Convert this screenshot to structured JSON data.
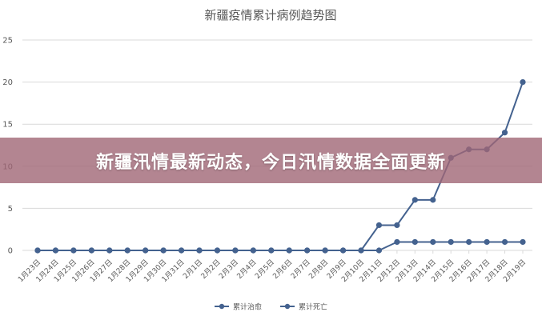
{
  "overlay": {
    "headline": "新疆汛情最新动态，今日汛情数据全面更新"
  },
  "chart_data": {
    "type": "line",
    "title": "新疆疫情累计病例趋势图",
    "categories": [
      "1月23日",
      "1月24日",
      "1月25日",
      "1月26日",
      "1月27日",
      "1月28日",
      "1月29日",
      "1月30日",
      "1月31日",
      "2月1日",
      "2月2日",
      "2月3日",
      "2月4日",
      "2月5日",
      "2月6日",
      "2月7日",
      "2月8日",
      "2月9日",
      "2月10日",
      "2月11日",
      "2月12日",
      "2月13日",
      "2月14日",
      "2月15日",
      "2月16日",
      "2月17日",
      "2月18日",
      "2月19日"
    ],
    "series": [
      {
        "name": "累计治愈",
        "values": [
          0,
          0,
          0,
          0,
          0,
          0,
          0,
          0,
          0,
          0,
          0,
          0,
          0,
          0,
          0,
          0,
          0,
          0,
          0,
          3,
          3,
          6,
          6,
          11,
          12,
          12,
          14,
          20
        ]
      },
      {
        "name": "累计死亡",
        "values": [
          0,
          0,
          0,
          0,
          0,
          0,
          0,
          0,
          0,
          0,
          0,
          0,
          0,
          0,
          0,
          0,
          0,
          0,
          0,
          0,
          1,
          1,
          1,
          1,
          1,
          1,
          1,
          1
        ]
      }
    ],
    "ylim": [
      0,
      25
    ],
    "yticks": [
      0,
      5,
      10,
      15,
      20,
      25
    ],
    "grid": true,
    "legend": "bottom",
    "colors": {
      "series": "#44628f",
      "grid": "#d9d9d9",
      "text": "#595959"
    }
  }
}
